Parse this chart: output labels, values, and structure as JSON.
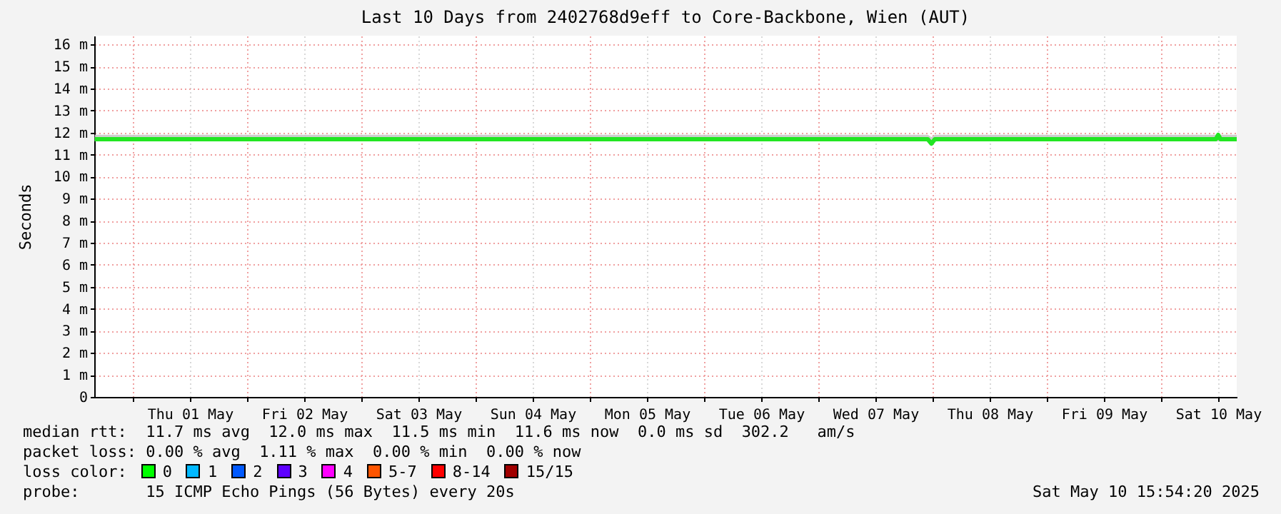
{
  "chart_data": {
    "type": "line",
    "title": "Last 10 Days from 2402768d9eff to Core-Backbone, Wien (AUT)",
    "ylabel": "Seconds",
    "x": [
      "2025-04-30T16:00",
      "2025-05-01T00:00",
      "2025-05-01T12:00",
      "2025-05-02T00:00",
      "2025-05-02T12:00",
      "2025-05-03T00:00",
      "2025-05-03T12:00",
      "2025-05-04T00:00",
      "2025-05-04T12:00",
      "2025-05-05T00:00",
      "2025-05-05T12:00",
      "2025-05-06T00:00",
      "2025-05-06T12:00",
      "2025-05-07T00:00",
      "2025-05-07T12:00",
      "2025-05-07T23:00",
      "2025-05-07T23:45",
      "2025-05-08T00:30",
      "2025-05-08T12:00",
      "2025-05-09T00:00",
      "2025-05-09T12:00",
      "2025-05-10T00:00",
      "2025-05-10T11:30",
      "2025-05-10T12:00",
      "2025-05-10T12:30",
      "2025-05-10T15:54"
    ],
    "series": [
      {
        "color": "#22e622",
        "values": [
          11.7,
          11.7,
          11.7,
          11.7,
          11.7,
          11.7,
          11.7,
          11.7,
          11.7,
          11.7,
          11.7,
          11.7,
          11.7,
          11.7,
          11.7,
          11.7,
          11.5,
          11.7,
          11.7,
          11.7,
          11.7,
          11.7,
          11.7,
          11.9,
          11.7,
          11.7
        ],
        "lower": [
          11.6,
          11.6,
          11.6,
          11.6,
          11.6,
          11.6,
          11.6,
          11.6,
          11.6,
          11.6,
          11.6,
          11.6,
          11.6,
          11.6,
          11.6,
          11.6,
          11.5,
          11.6,
          11.6,
          11.6,
          11.6,
          11.6,
          11.6,
          11.6,
          11.6,
          11.6
        ],
        "upper": [
          11.9,
          11.9,
          11.9,
          11.9,
          11.9,
          11.9,
          11.9,
          11.9,
          11.9,
          11.9,
          11.9,
          11.9,
          11.9,
          11.9,
          11.9,
          11.9,
          11.8,
          11.9,
          11.9,
          11.9,
          11.9,
          11.9,
          11.9,
          12.0,
          11.9,
          11.9
        ]
      }
    ],
    "xlim": [
      "2025-04-30T15:54",
      "2025-05-10T15:54"
    ],
    "xticks": [
      {
        "value": "2025-05-01T00:00",
        "label": null
      },
      {
        "value": "2025-05-01T12:00",
        "label": "Thu 01 May"
      },
      {
        "value": "2025-05-02T00:00",
        "label": null
      },
      {
        "value": "2025-05-02T12:00",
        "label": "Fri 02 May"
      },
      {
        "value": "2025-05-03T00:00",
        "label": null
      },
      {
        "value": "2025-05-03T12:00",
        "label": "Sat 03 May"
      },
      {
        "value": "2025-05-04T00:00",
        "label": null
      },
      {
        "value": "2025-05-04T12:00",
        "label": "Sun 04 May"
      },
      {
        "value": "2025-05-05T00:00",
        "label": null
      },
      {
        "value": "2025-05-05T12:00",
        "label": "Mon 05 May"
      },
      {
        "value": "2025-05-06T00:00",
        "label": null
      },
      {
        "value": "2025-05-06T12:00",
        "label": "Tue 06 May"
      },
      {
        "value": "2025-05-07T00:00",
        "label": null
      },
      {
        "value": "2025-05-07T12:00",
        "label": "Wed 07 May"
      },
      {
        "value": "2025-05-08T00:00",
        "label": null
      },
      {
        "value": "2025-05-08T12:00",
        "label": "Thu 08 May"
      },
      {
        "value": "2025-05-09T00:00",
        "label": null
      },
      {
        "value": "2025-05-09T12:00",
        "label": "Fri 09 May"
      },
      {
        "value": "2025-05-10T00:00",
        "label": null
      },
      {
        "value": "2025-05-10T12:00",
        "label": "Sat 10 May"
      }
    ],
    "ylim": [
      0,
      16.4
    ],
    "yticks": [
      0,
      {
        "value": 1,
        "label": "1 m"
      },
      {
        "value": 2,
        "label": "2 m"
      },
      {
        "value": 3,
        "label": "3 m"
      },
      {
        "value": 4,
        "label": "4 m"
      },
      {
        "value": 5,
        "label": "5 m"
      },
      {
        "value": 6,
        "label": "6 m"
      },
      {
        "value": 7,
        "label": "7 m"
      },
      {
        "value": 8,
        "label": "8 m"
      },
      {
        "value": 9,
        "label": "9 m"
      },
      {
        "value": 10,
        "label": "10 m"
      },
      {
        "value": 11,
        "label": "11 m"
      },
      {
        "value": 12,
        "label": "12 m"
      },
      {
        "value": 13,
        "label": "13 m"
      },
      {
        "value": 14,
        "label": "14 m"
      },
      {
        "value": 15,
        "label": "15 m"
      },
      {
        "value": 16,
        "label": "16 m"
      }
    ],
    "grid": true,
    "annotations": [
      "median rtt:  11.7 ms avg  12.0 ms max  11.5 ms min  11.6 ms now  0.0 ms sd  302.2   am/s",
      "packet loss: 0.00 % avg  1.11 % max  0.00 % min  0.00 % now",
      "loss color:",
      "0",
      "1",
      "2",
      "3",
      "4",
      "5-7",
      "8-14",
      "15/15",
      "probe:       15 ICMP Echo Pings (56 Bytes) every 20s",
      "Sat May 10 15:54:20 2025"
    ]
  }
}
